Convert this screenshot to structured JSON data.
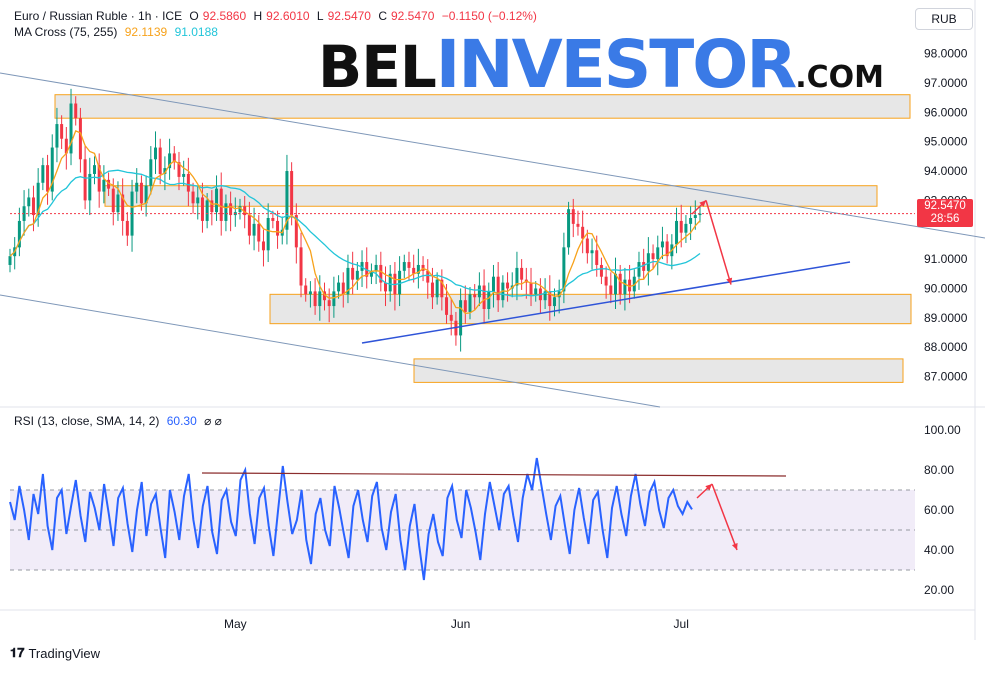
{
  "header": {
    "symbol": "Euro / Russian Ruble · 1h · ICE",
    "o_label": "O",
    "o_value": "92.5860",
    "h_label": "H",
    "h_value": "92.6010",
    "l_label": "L",
    "l_value": "92.5470",
    "c_label": "C",
    "c_value": "92.5470",
    "change": "−0.1150 (−0.12%)",
    "ma_label": "MA Cross (75, 255)",
    "ma_fast": "92.1139",
    "ma_slow": "91.0188",
    "rsi_label": "RSI (13, close, SMA, 14, 2)",
    "rsi_value": "60.30",
    "rsi_extra": "⌀  ⌀"
  },
  "currency_badge": "RUB",
  "price_tag": {
    "price": "92.5470",
    "countdown": "28:56"
  },
  "watermark": {
    "part1": "BEL",
    "part2": "INVESTOR",
    "part3": ".COM"
  },
  "brand": {
    "name": "TradingView",
    "icon": "tradingview-logo-icon"
  },
  "colors": {
    "candle_up": "#089981",
    "candle_down": "#f23645",
    "ma_fast": "#f7a21b",
    "ma_slow": "#22c5d9",
    "rsi_line": "#2962ff",
    "zone_fill": "#e3e3e3",
    "zone_border": "#f7a21b",
    "trend_blue": "#2f54d8",
    "channel": "#7e97b8",
    "rsi_trend": "#8b2d2d",
    "arrow": "#f23645",
    "rsi_band": "#ede7f6"
  },
  "chart_data": [
    {
      "type": "candlestick",
      "title": "Euro / Russian Ruble · 1h · ICE",
      "ylim": [
        86.2,
        98.6
      ],
      "y_ticks": [
        "98.0000",
        "97.0000",
        "96.0000",
        "95.0000",
        "94.0000",
        "93.0000",
        "91.0000",
        "90.0000",
        "89.0000",
        "88.0000",
        "87.0000"
      ],
      "x_ticks": [
        "May",
        "Jun",
        "Jul"
      ],
      "x_tick_bar_index": [
        48,
        96,
        143
      ],
      "last_price": 92.547,
      "close_series": [
        91.1,
        91.4,
        92.3,
        92.8,
        93.1,
        92.5,
        93.6,
        94.2,
        93.3,
        94.8,
        95.6,
        95.1,
        94.6,
        96.3,
        95.8,
        94.4,
        93.0,
        93.9,
        94.2,
        93.3,
        93.7,
        93.4,
        92.6,
        93.2,
        92.3,
        91.8,
        93.3,
        93.6,
        92.9,
        93.5,
        94.4,
        94.8,
        93.9,
        94.1,
        94.6,
        94.3,
        93.8,
        93.9,
        93.3,
        92.9,
        93.1,
        92.3,
        93.0,
        92.6,
        93.4,
        92.3,
        92.9,
        92.5,
        92.6,
        92.8,
        92.5,
        91.8,
        92.2,
        91.6,
        91.3,
        92.4,
        92.3,
        91.8,
        92.0,
        94.0,
        92.5,
        91.4,
        90.1,
        89.8,
        89.9,
        89.4,
        89.9,
        89.6,
        89.4,
        89.9,
        90.2,
        89.8,
        90.7,
        90.3,
        90.6,
        90.9,
        90.4,
        90.6,
        90.8,
        90.2,
        89.9,
        90.5,
        89.8,
        90.6,
        90.9,
        90.7,
        90.5,
        90.8,
        90.6,
        90.2,
        89.7,
        90.3,
        89.7,
        89.1,
        88.9,
        88.4,
        89.6,
        89.2,
        89.8,
        89.7,
        90.1,
        89.3,
        89.9,
        90.4,
        89.6,
        90.2,
        90.0,
        90.1,
        90.7,
        90.3,
        90.2,
        89.8,
        90.0,
        89.6,
        89.9,
        89.4,
        89.7,
        89.9,
        91.4,
        92.7,
        92.2,
        92.1,
        91.7,
        91.2,
        91.3,
        90.8,
        90.4,
        90.1,
        89.8,
        90.5,
        89.8,
        90.3,
        89.9,
        90.4,
        90.9,
        90.6,
        91.2,
        91.0,
        91.4,
        91.6,
        91.1,
        91.5,
        92.3,
        91.9,
        92.2,
        92.4,
        92.5,
        92.547
      ],
      "zones": [
        {
          "from": 95.8,
          "to": 96.6
        },
        {
          "from": 92.8,
          "to": 93.5
        },
        {
          "from": 88.8,
          "to": 89.8
        },
        {
          "from": 86.8,
          "to": 87.6
        }
      ],
      "series": [
        {
          "name": "MA Cross (75, 255)",
          "last": 92.1139
        },
        {
          "name": "MA Cross (75, 255)",
          "last": 91.0188
        }
      ],
      "forecast": {
        "peak": 93.0,
        "target": 90.2
      }
    },
    {
      "type": "line",
      "title": "RSI (13, close, SMA, 14, 2)",
      "ylim": [
        15,
        105
      ],
      "y_ticks": [
        "100.00",
        "80.00",
        "60.00",
        "40.00",
        "20.00"
      ],
      "bands": [
        30,
        50,
        70
      ],
      "last": 60.3,
      "values": [
        64,
        55,
        72,
        60,
        45,
        68,
        58,
        78,
        52,
        40,
        66,
        70,
        48,
        62,
        75,
        57,
        44,
        69,
        61,
        50,
        73,
        58,
        42,
        66,
        71,
        53,
        39,
        60,
        74,
        47,
        63,
        68,
        51,
        36,
        70,
        59,
        45,
        67,
        78,
        55,
        41,
        62,
        72,
        49,
        38,
        65,
        70,
        54,
        47,
        75,
        80,
        58,
        43,
        66,
        71,
        52,
        37,
        60,
        82,
        64,
        48,
        55,
        70,
        45,
        33,
        58,
        66,
        50,
        42,
        72,
        61,
        48,
        36,
        62,
        70,
        55,
        44,
        67,
        74,
        51,
        40,
        59,
        68,
        45,
        30,
        52,
        63,
        42,
        25,
        48,
        58,
        44,
        37,
        66,
        72,
        55,
        46,
        70,
        61,
        49,
        35,
        58,
        74,
        62,
        50,
        68,
        72,
        57,
        44,
        66,
        78,
        70,
        86,
        72,
        58,
        45,
        62,
        67,
        52,
        38,
        60,
        71,
        56,
        43,
        65,
        69,
        50,
        36,
        61,
        72,
        58,
        47,
        67,
        78,
        63,
        52,
        69,
        74,
        60,
        51,
        66,
        70,
        62,
        58,
        64,
        60.3
      ],
      "resistance_from": 84,
      "resistance_to": 77,
      "forecast": {
        "peak": 77,
        "target": 40
      }
    }
  ]
}
